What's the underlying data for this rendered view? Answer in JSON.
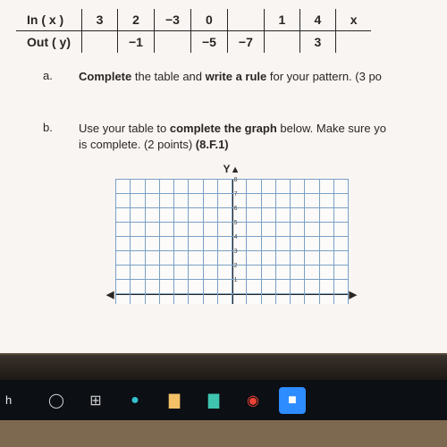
{
  "table": {
    "row1": [
      "In ( x )",
      "3",
      "2",
      "−3",
      "0",
      "",
      "1",
      "4",
      "x"
    ],
    "row2": [
      "Out ( y)",
      "",
      "−1",
      "",
      "−5",
      "−7",
      "",
      "3",
      ""
    ]
  },
  "qa": {
    "letter": "a.",
    "text_before": "Complete",
    "text_mid": " the table and ",
    "text_bold2": "write a rule",
    "text_after": " for your pattern. (3 po"
  },
  "qb": {
    "letter": "b.",
    "line1_before": "Use your table to ",
    "line1_bold": "complete the graph",
    "line1_after": " below.  Make sure yo",
    "line2": "is complete. (2 points) ",
    "standard": "(8.F.1)"
  },
  "chart": {
    "ylabel": "Y",
    "grid_color": "#7aa0c4",
    "axis_color": "#2a2625",
    "bg": "#fcfbfa",
    "hlines": 8,
    "vlines": 16,
    "yticks": [
      "8",
      "7",
      "6",
      "5",
      "4",
      "3",
      "2",
      "1"
    ]
  },
  "taskbar": {
    "search": "h",
    "icons": {
      "cortana": {
        "bg": "#0c0f14",
        "glyph": "◯",
        "color": "#cfcfcf"
      },
      "taskview": {
        "bg": "#0c0f14",
        "glyph": "⊞",
        "color": "#cfcfcf"
      },
      "edge": {
        "bg": "#0c0f14",
        "glyph": "●",
        "color": "#35c1d0"
      },
      "explorer": {
        "bg": "#0c0f14",
        "glyph": "▇",
        "color": "#f4c167"
      },
      "store": {
        "bg": "#0c0f14",
        "glyph": "▇",
        "color": "#3fc4b0"
      },
      "chrome": {
        "bg": "#0c0f14",
        "glyph": "◉",
        "color": "#ea4335"
      },
      "zoom": {
        "bg": "#2d8cff",
        "glyph": "■",
        "color": "#ffffff"
      }
    }
  }
}
